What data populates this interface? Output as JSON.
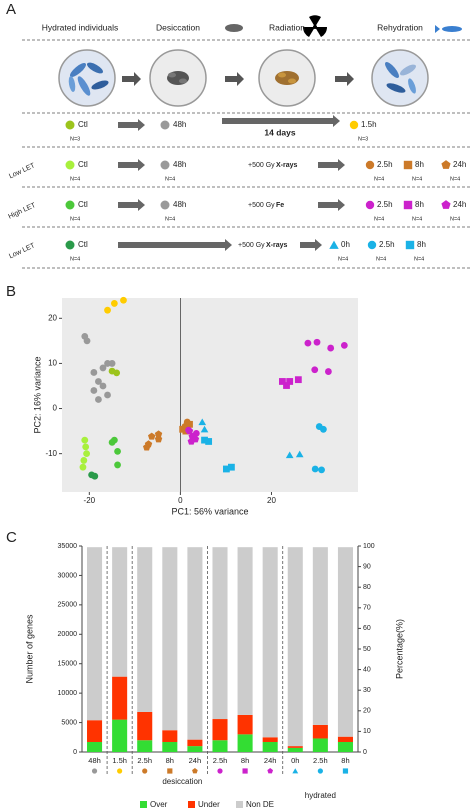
{
  "panel_labels": [
    "A",
    "B",
    "C"
  ],
  "diagram": {
    "stages": [
      "Hydrated individuals",
      "Desiccation",
      "Radiation",
      "Rehydration"
    ],
    "rows": [
      {
        "ctl": {
          "label": "Ctl",
          "color": "#9cc41c"
        },
        "ctl_n": "N=3",
        "desiccation": {
          "label": "48h",
          "color": "#999999"
        },
        "treatment": "14 days",
        "timepoints": [
          {
            "label": "1.5h",
            "color": "#ffcc00",
            "shape": "circle"
          }
        ],
        "n": "N=3"
      },
      {
        "side_label": "Low LET",
        "ctl": {
          "label": "Ctl",
          "color": "#a8f03c"
        },
        "ctl_n": "N=4",
        "desiccation": {
          "label": "48h",
          "color": "#999999"
        },
        "desiccation_n": "N=4",
        "treatment": "+500 Gy",
        "agent": "X-rays",
        "timepoints": [
          {
            "label": "2.5h",
            "color": "#cc7a29",
            "shape": "circle"
          },
          {
            "label": "8h",
            "color": "#cc7a29",
            "shape": "square"
          },
          {
            "label": "24h",
            "color": "#cc7a29",
            "shape": "pentagon"
          }
        ],
        "n": "N=4"
      },
      {
        "side_label": "High LET",
        "ctl": {
          "label": "Ctl",
          "color": "#4cc83a"
        },
        "ctl_n": "N=4",
        "desiccation": {
          "label": "48h",
          "color": "#999999"
        },
        "desiccation_n": "N=4",
        "treatment": "+500 Gy",
        "agent": "Fe",
        "timepoints": [
          {
            "label": "2.5h",
            "color": "#cc22cc",
            "shape": "circle"
          },
          {
            "label": "8h",
            "color": "#cc22cc",
            "shape": "square"
          },
          {
            "label": "24h",
            "color": "#cc22cc",
            "shape": "pentagon"
          }
        ],
        "n": "N=4"
      },
      {
        "side_label": "Low LET",
        "ctl": {
          "label": "Ctl",
          "color": "#2a9a4a"
        },
        "ctl_n": "N=4",
        "treatment": "+500 Gy",
        "agent": "X-rays",
        "timepoints": [
          {
            "label": "0h",
            "color": "#1ab2e6",
            "shape": "triangle"
          },
          {
            "label": "2.5h",
            "color": "#1ab2e6",
            "shape": "circle"
          },
          {
            "label": "8h",
            "color": "#1ab2e6",
            "shape": "square"
          }
        ],
        "n": "N=4"
      }
    ]
  },
  "chart_data": [
    {
      "type": "scatter",
      "xlabel": "PC1: 56% variance",
      "ylabel": "PC2: 16% variance",
      "xlim": [
        -26,
        39
      ],
      "ylim": [
        -18.5,
        24.5
      ],
      "xticks": [
        -20,
        0,
        20
      ],
      "yticks": [
        -10,
        0,
        10,
        20
      ],
      "vline": 0,
      "series": [
        {
          "color": "#999999",
          "shape": "circle",
          "x": [
            -21,
            -20.5,
            -19,
            -18,
            -17,
            -16,
            -15,
            -18,
            -16,
            -19,
            -17
          ],
          "y": [
            16,
            15,
            8,
            6,
            9,
            10,
            10,
            2,
            3,
            4,
            5
          ]
        },
        {
          "color": "#ffcc00",
          "shape": "circle",
          "x": [
            -16,
            -14.5,
            -12.5
          ],
          "y": [
            21.8,
            23.3,
            24
          ]
        },
        {
          "color": "#9cc41c",
          "shape": "circle",
          "x": [
            -15,
            -14
          ],
          "y": [
            8.3,
            7.9
          ]
        },
        {
          "color": "#a8f03c",
          "shape": "circle",
          "x": [
            -21,
            -20.8,
            -20.6,
            -21.4,
            -21.2
          ],
          "y": [
            -7,
            -8.5,
            -10,
            -13,
            -11.5
          ]
        },
        {
          "color": "#4cc83a",
          "shape": "circle",
          "x": [
            -14.5,
            -13.8,
            -13.8,
            -15
          ],
          "y": [
            -7,
            -9.5,
            -12.5,
            -7.5
          ]
        },
        {
          "color": "#2a9a4a",
          "shape": "circle",
          "x": [
            -19.5,
            -18.8
          ],
          "y": [
            -14.7,
            -15
          ]
        },
        {
          "color": "#cc7a29",
          "shape": "circle",
          "x": [
            1,
            1.5
          ],
          "y": [
            -4,
            -3
          ]
        },
        {
          "color": "#cc7a29",
          "shape": "square",
          "x": [
            0.5,
            2,
            1.2
          ],
          "y": [
            -4.6,
            -3.5,
            -5
          ]
        },
        {
          "color": "#cc7a29",
          "shape": "pentagon",
          "x": [
            -7,
            -6.3,
            -4.8,
            -4.8,
            -7.4
          ],
          "y": [
            -7.9,
            -6.2,
            -5.7,
            -6.8,
            -8.6
          ]
        },
        {
          "color": "#cc22cc",
          "shape": "circle",
          "x": [
            28,
            30,
            33,
            36,
            32.5,
            29.5,
            1.8,
            3.5
          ],
          "y": [
            14.5,
            14.7,
            13.4,
            14,
            8.2,
            8.6,
            -4.8,
            -5.5
          ]
        },
        {
          "color": "#cc22cc",
          "shape": "square",
          "x": [
            22.4,
            24,
            23.3,
            25.9
          ],
          "y": [
            6,
            6,
            5.1,
            6.4
          ]
        },
        {
          "color": "#cc22cc",
          "shape": "pentagon",
          "x": [
            2,
            2.6,
            3.3,
            2.4
          ],
          "y": [
            -5,
            -6.2,
            -6.8,
            -7.3
          ]
        },
        {
          "color": "#1ab2e6",
          "shape": "triangle",
          "x": [
            4.8,
            5.3,
            24,
            26.2
          ],
          "y": [
            -3,
            -4.6,
            -10.3,
            -10.1
          ]
        },
        {
          "color": "#1ab2e6",
          "shape": "circle",
          "x": [
            30.5,
            31.4,
            29.6,
            31
          ],
          "y": [
            -4,
            -4.6,
            -13.4,
            -13.6
          ]
        },
        {
          "color": "#1ab2e6",
          "shape": "square",
          "x": [
            5.3,
            6.2,
            10.1,
            11.2
          ],
          "y": [
            -7,
            -7.3,
            -13.4,
            -13
          ]
        }
      ]
    },
    {
      "type": "bar",
      "stacked": true,
      "ylabel": "Number of genes",
      "y2label": "Percentage(%)",
      "categories": [
        "48h",
        "1.5h",
        "2.5h",
        "8h",
        "24h",
        "2.5h",
        "8h",
        "24h",
        "0h",
        "2.5h",
        "8h"
      ],
      "markers": [
        {
          "color": "#999999",
          "shape": "circle"
        },
        {
          "color": "#ffcc00",
          "shape": "circle"
        },
        {
          "color": "#cc7a29",
          "shape": "circle"
        },
        {
          "color": "#cc7a29",
          "shape": "square"
        },
        {
          "color": "#cc7a29",
          "shape": "pentagon"
        },
        {
          "color": "#cc22cc",
          "shape": "circle"
        },
        {
          "color": "#cc22cc",
          "shape": "square"
        },
        {
          "color": "#cc22cc",
          "shape": "pentagon"
        },
        {
          "color": "#1ab2e6",
          "shape": "triangle"
        },
        {
          "color": "#1ab2e6",
          "shape": "circle"
        },
        {
          "color": "#1ab2e6",
          "shape": "square"
        }
      ],
      "series": [
        {
          "name": "Over",
          "color": "#33dd33",
          "values": [
            1700,
            5500,
            2000,
            1700,
            1000,
            2000,
            3000,
            1700,
            700,
            2300,
            1700
          ]
        },
        {
          "name": "Under",
          "color": "#ff3300",
          "values": [
            3700,
            7300,
            4800,
            2000,
            1100,
            3600,
            3300,
            800,
            300,
            2300,
            900
          ]
        },
        {
          "name": "Non DE",
          "color": "#cccccc",
          "values": [
            29400,
            22000,
            28000,
            31100,
            32700,
            29200,
            28500,
            32300,
            33800,
            30200,
            32200
          ]
        }
      ],
      "ylim": [
        0,
        35000
      ],
      "yticks": [
        0,
        5000,
        10000,
        15000,
        20000,
        25000,
        30000,
        35000
      ],
      "y2lim": [
        0,
        100
      ],
      "y2ticks": [
        0,
        10,
        20,
        30,
        40,
        50,
        60,
        70,
        80,
        90,
        100
      ],
      "groups": [
        "desiccation",
        "hydrated"
      ],
      "legend": "bottom"
    }
  ]
}
